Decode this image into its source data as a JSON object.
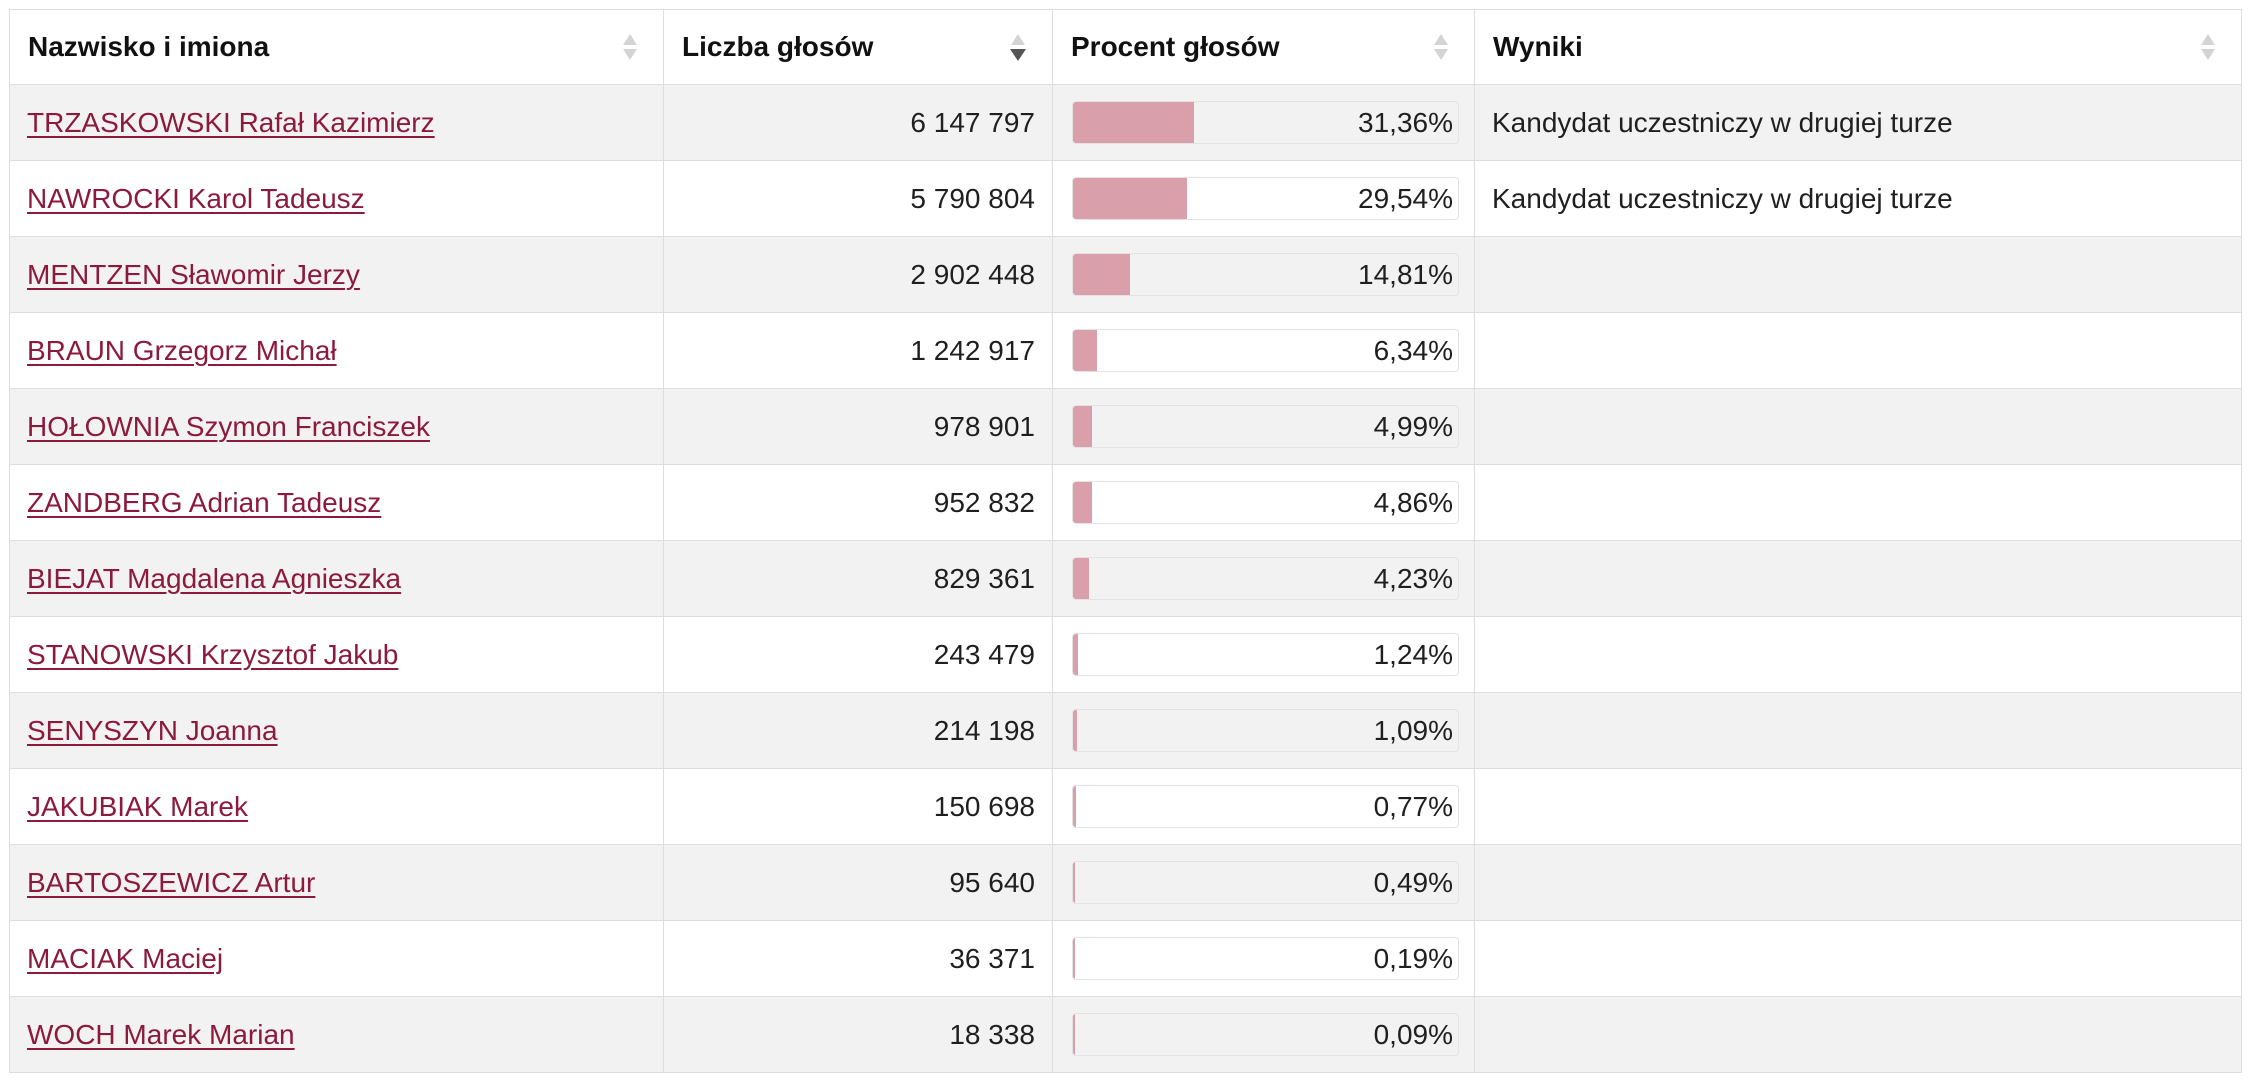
{
  "colors": {
    "link": "#8c1a3c",
    "bar_fill": "#d9a0ac",
    "row_alt": "#f2f2f2",
    "border": "#dedede",
    "sort_active": "#555555",
    "sort_inactive": "#d4d4d4"
  },
  "table": {
    "columns": [
      {
        "label": "Nazwisko i imiona",
        "sort_icon": "sort-icon"
      },
      {
        "label": "Liczba głosów",
        "sort_icon": "sort-desc-icon"
      },
      {
        "label": "Procent głosów",
        "sort_icon": "sort-icon"
      },
      {
        "label": "Wyniki",
        "sort_icon": "sort-icon"
      }
    ],
    "rows": [
      {
        "name": "TRZASKOWSKI Rafał Kazimierz",
        "votes": "6 147 797",
        "percent": "31,36%",
        "percent_fill": 31.36,
        "result": "Kandydat uczestniczy w drugiej turze"
      },
      {
        "name": "NAWROCKI Karol Tadeusz",
        "votes": "5 790 804",
        "percent": "29,54%",
        "percent_fill": 29.54,
        "result": "Kandydat uczestniczy w drugiej turze"
      },
      {
        "name": "MENTZEN Sławomir Jerzy",
        "votes": "2 902 448",
        "percent": "14,81%",
        "percent_fill": 14.81,
        "result": ""
      },
      {
        "name": "BRAUN Grzegorz Michał",
        "votes": "1 242 917",
        "percent": "6,34%",
        "percent_fill": 6.34,
        "result": ""
      },
      {
        "name": "HOŁOWNIA Szymon Franciszek",
        "votes": "978 901",
        "percent": "4,99%",
        "percent_fill": 4.99,
        "result": ""
      },
      {
        "name": "ZANDBERG Adrian Tadeusz",
        "votes": "952 832",
        "percent": "4,86%",
        "percent_fill": 4.86,
        "result": ""
      },
      {
        "name": "BIEJAT Magdalena Agnieszka",
        "votes": "829 361",
        "percent": "4,23%",
        "percent_fill": 4.23,
        "result": ""
      },
      {
        "name": "STANOWSKI Krzysztof Jakub",
        "votes": "243 479",
        "percent": "1,24%",
        "percent_fill": 1.24,
        "result": ""
      },
      {
        "name": "SENYSZYN Joanna",
        "votes": "214 198",
        "percent": "1,09%",
        "percent_fill": 1.09,
        "result": ""
      },
      {
        "name": "JAKUBIAK Marek",
        "votes": "150 698",
        "percent": "0,77%",
        "percent_fill": 0.77,
        "result": ""
      },
      {
        "name": "BARTOSZEWICZ Artur",
        "votes": "95 640",
        "percent": "0,49%",
        "percent_fill": 0.49,
        "result": ""
      },
      {
        "name": "MACIAK Maciej",
        "votes": "36 371",
        "percent": "0,19%",
        "percent_fill": 0.19,
        "result": ""
      },
      {
        "name": "WOCH Marek Marian",
        "votes": "18 338",
        "percent": "0,09%",
        "percent_fill": 0.09,
        "result": ""
      }
    ]
  }
}
